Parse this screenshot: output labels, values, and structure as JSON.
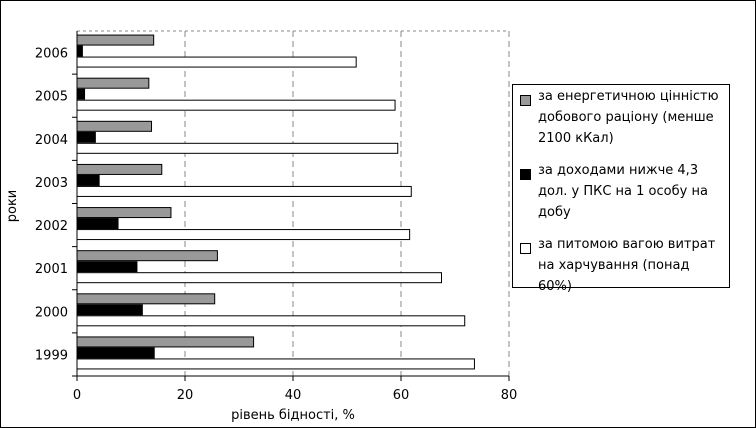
{
  "chart_data": {
    "type": "bar",
    "orientation": "horizontal",
    "categories": [
      "2006",
      "2005",
      "2004",
      "2003",
      "2002",
      "2001",
      "2000",
      "1999"
    ],
    "series": [
      {
        "name": "за енергетичною цінністю добового раціону (менше 2100 кКал)",
        "color": "#999999",
        "values": [
          14.2,
          13.3,
          13.8,
          15.7,
          17.4,
          26.0,
          25.5,
          32.7
        ]
      },
      {
        "name": "за доходами нижче 4,3 дол. у ПКС на 1 особу на добу",
        "color": "#000000",
        "values": [
          1.0,
          1.4,
          3.4,
          4.1,
          7.6,
          11.1,
          12.1,
          14.3
        ]
      },
      {
        "name": "за питомою вагою витрат на харчування (понад 60%)",
        "color": "#ffffff",
        "values": [
          51.7,
          58.9,
          59.4,
          61.9,
          61.6,
          67.5,
          71.8,
          73.6
        ]
      }
    ],
    "xlabel": "рівень бідності, %",
    "ylabel": "роки",
    "xlim": [
      0,
      80
    ],
    "xticks": [
      "0",
      "20",
      "40",
      "60",
      "80"
    ],
    "grid": "vertical dashed",
    "legend_position": "right"
  }
}
